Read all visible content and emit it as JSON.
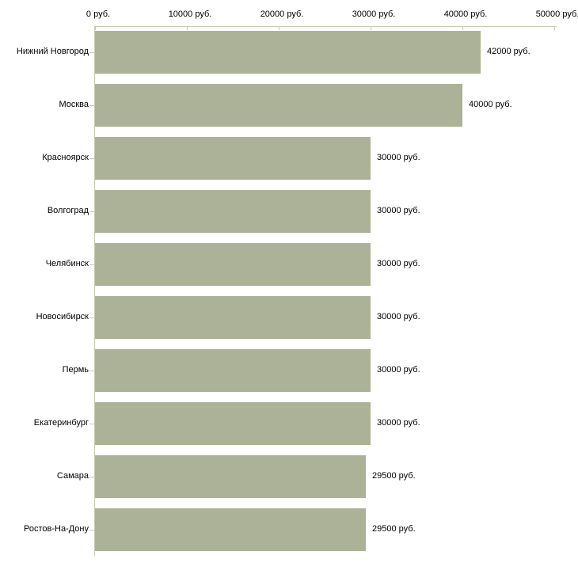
{
  "chart_data": {
    "type": "bar",
    "orientation": "horizontal",
    "title": "",
    "xlabel": "",
    "ylabel": "",
    "categories": [
      "Нижний Новгород",
      "Москва",
      "Красноярск",
      "Волгоград",
      "Челябинск",
      "Новосибирск",
      "Пермь",
      "Екатеринбург",
      "Самара",
      "Ростов-На-Дону"
    ],
    "values": [
      42000,
      40000,
      30000,
      30000,
      30000,
      30000,
      30000,
      30000,
      29500,
      29500
    ],
    "value_labels": [
      "42000 руб.",
      "40000 руб.",
      "30000 руб.",
      "30000 руб.",
      "30000 руб.",
      "30000 руб.",
      "30000 руб.",
      "30000 руб.",
      "29500 руб.",
      "29500 руб."
    ],
    "x_ticks": [
      0,
      10000,
      20000,
      30000,
      40000,
      50000
    ],
    "x_tick_labels": [
      "0 руб.",
      "10000 руб.",
      "20000 руб.",
      "30000 руб.",
      "40000 руб.",
      "50000 руб."
    ],
    "xlim": [
      0,
      50000
    ],
    "x_axis_position": "top",
    "grid": false,
    "legend": false,
    "colors": {
      "bar": "#abb297",
      "axis": "#c9c9b2",
      "text": "#000000",
      "background": "#ffffff"
    }
  }
}
